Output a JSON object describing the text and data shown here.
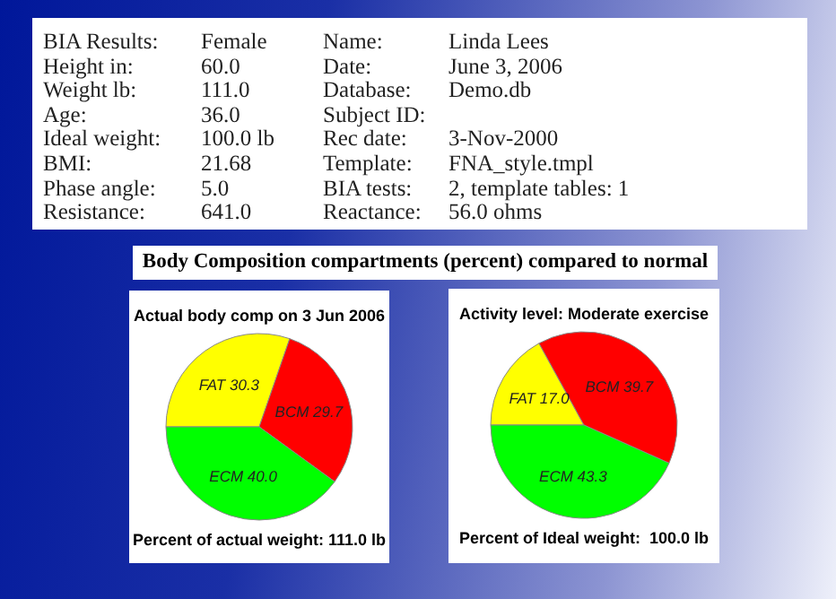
{
  "chart_data": [
    {
      "type": "other",
      "annotations": [
        "BIA Results:",
        "Female",
        "Name:",
        "Linda Lees",
        "Height in:",
        "60.0",
        "Date:",
        "June 3, 2006",
        "Weight lb:",
        "111.0",
        "Database:",
        "Demo.db",
        "Age:",
        "36.0",
        "Subject ID:",
        null,
        "Ideal weight:",
        "100.0 lb",
        "Rec date:",
        "3-Nov-2000",
        "BMI:",
        "21.68",
        "Template:",
        "FNA_style.tmpl",
        "Phase angle:",
        "5.0",
        "BIA tests:",
        "2, template tables: 1",
        "Resistance:",
        "641.0",
        "Reactance:",
        "56.0 ohms"
      ]
    },
    {
      "type": "other",
      "title": "Body Composition compartments (percent) compared to normal"
    },
    {
      "type": "pie",
      "title": "Actual body comp on 3 Jun 2006",
      "categories": [
        "FAT",
        "BCM",
        "ECM"
      ],
      "values": [
        30.3,
        29.7,
        40.0
      ],
      "colors": [
        "#ffff00",
        "#ff0000",
        "#00ff00"
      ],
      "value_labels": [
        "30.3",
        "29.7",
        "40.0"
      ],
      "annotations": [
        "Percent of actual weight: 111.0 lb"
      ]
    },
    {
      "type": "pie",
      "title": "Activity level: Moderate exercise",
      "categories": [
        "FAT",
        "BCM",
        "ECM"
      ],
      "values": [
        17.0,
        39.7,
        43.3
      ],
      "colors": [
        "#ffff00",
        "#ff0000",
        "#00ff00"
      ],
      "value_labels": [
        "17.0",
        "39.7",
        "43.3"
      ],
      "annotations": [
        "Percent of Ideal weight:  100.0 lb"
      ]
    }
  ]
}
